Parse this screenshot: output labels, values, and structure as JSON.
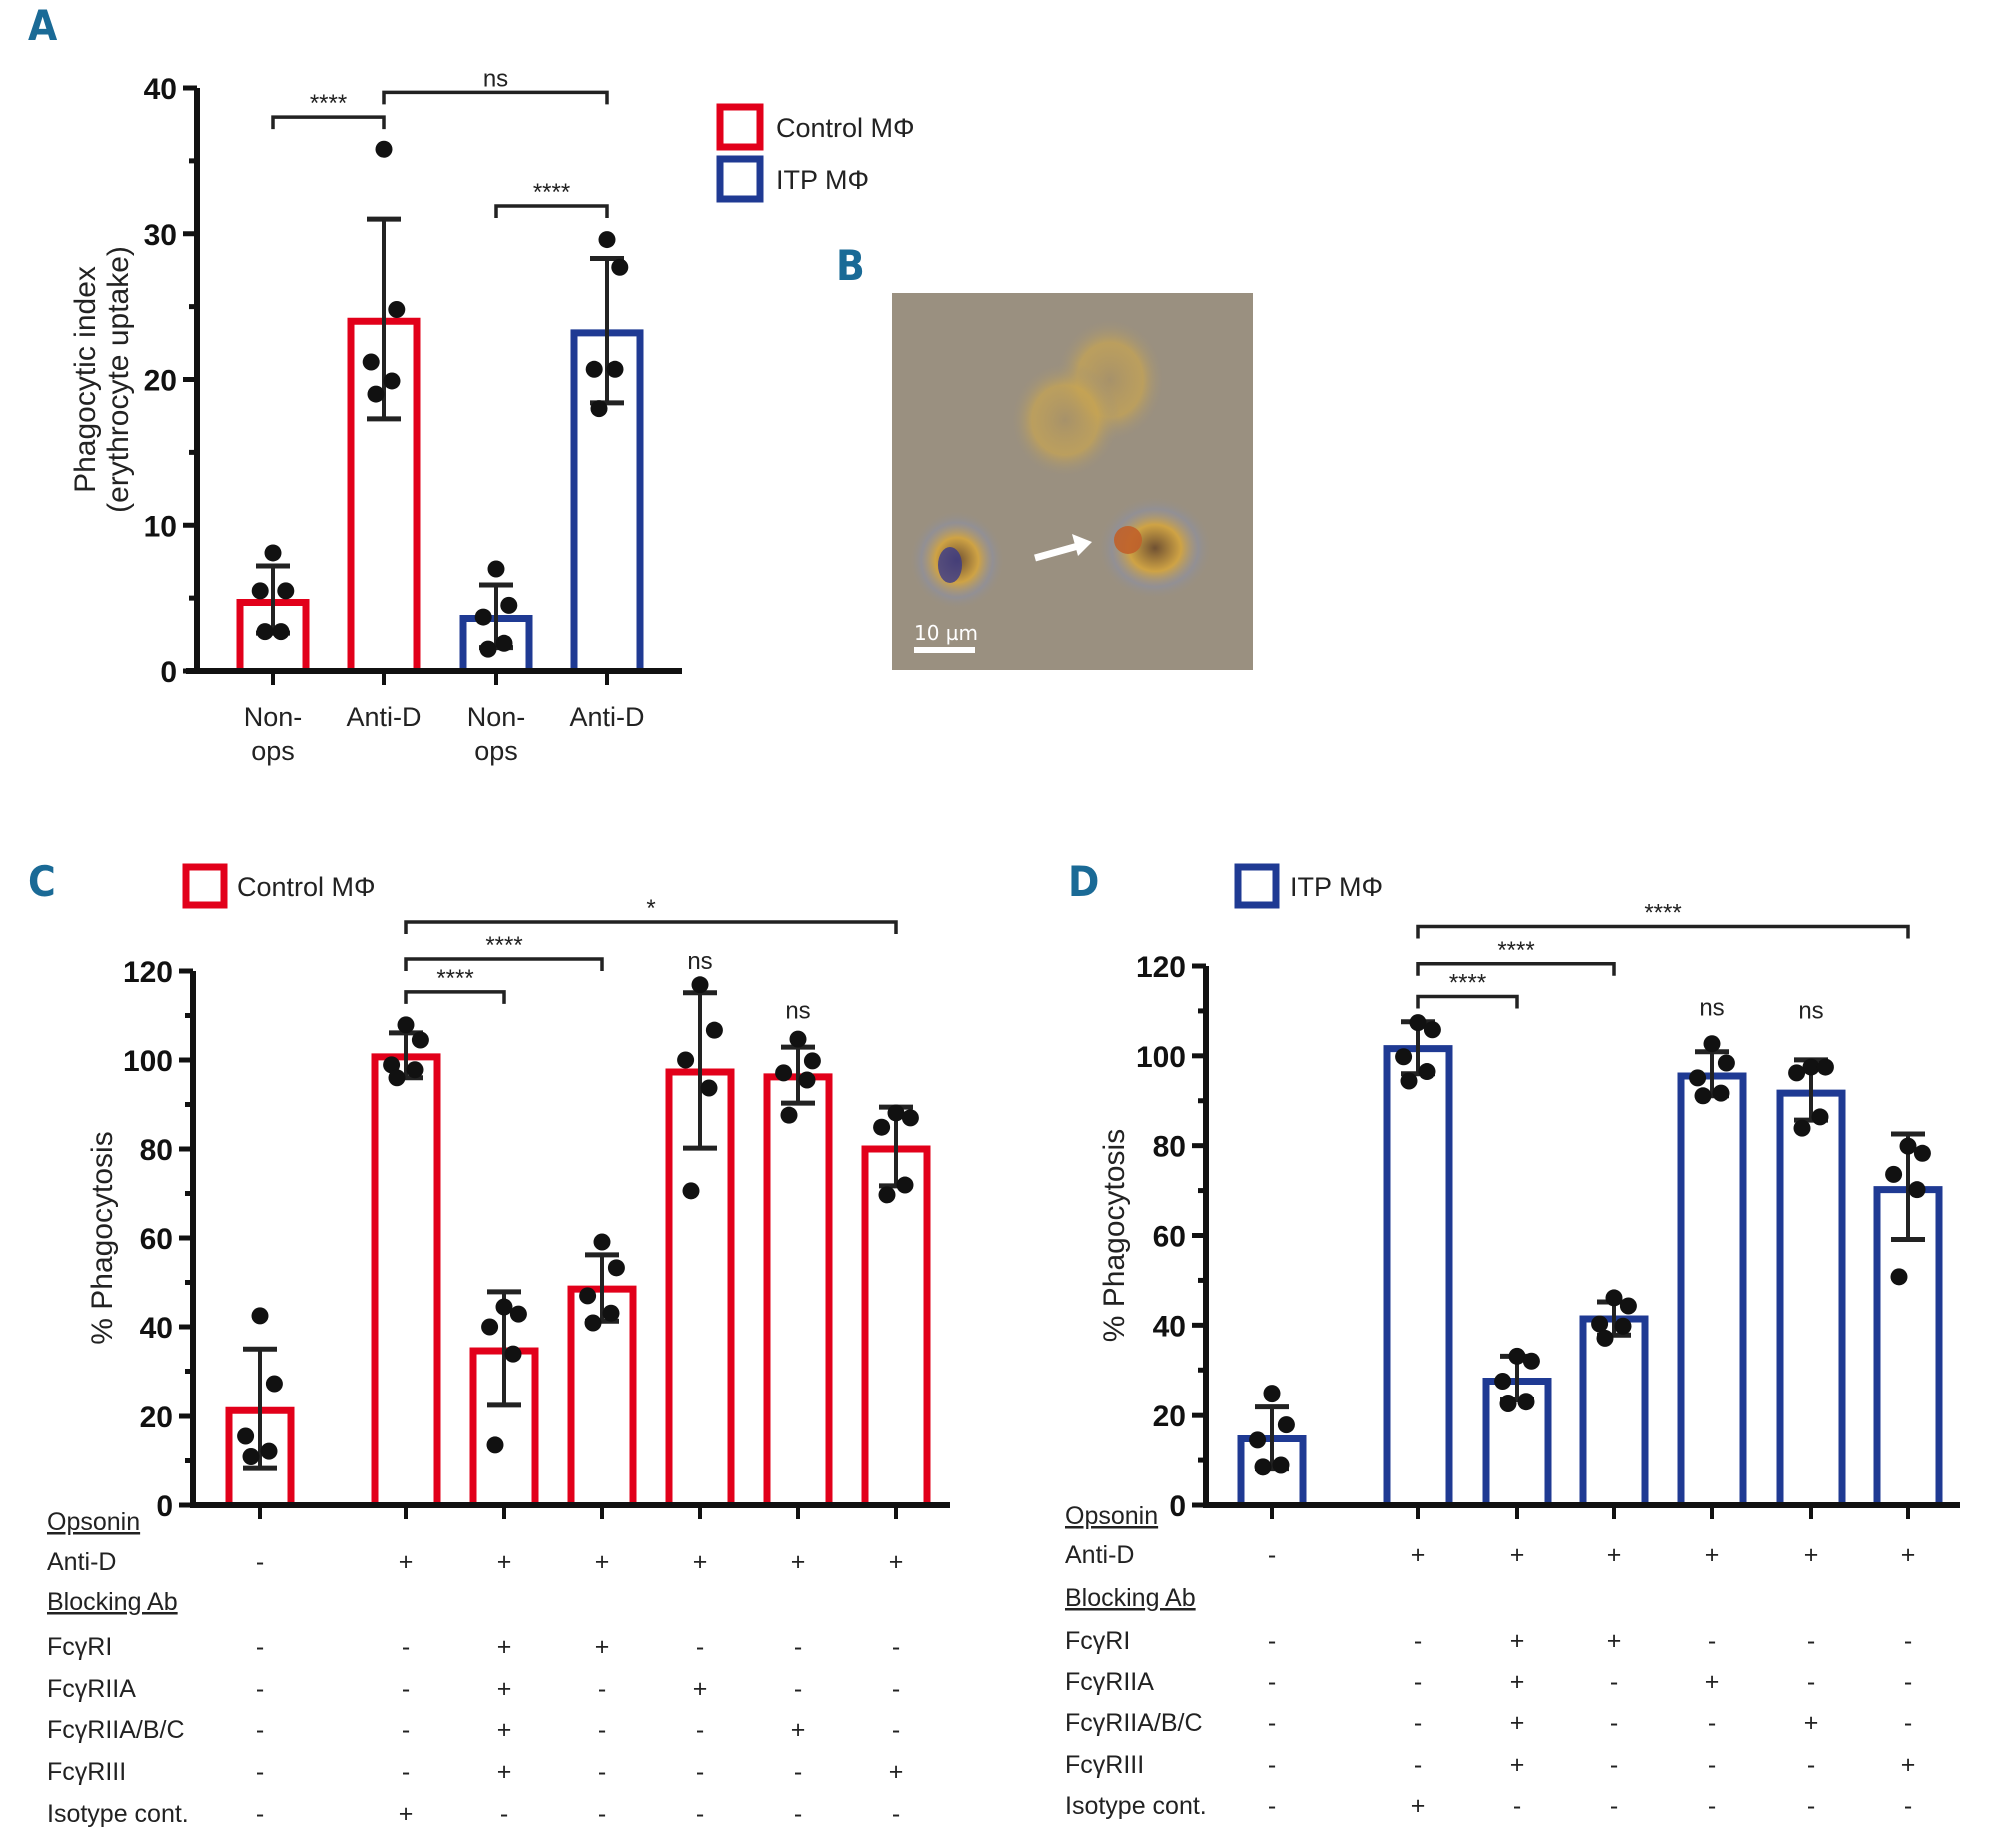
{
  "figure": {
    "panel_labels": [
      "A",
      "B",
      "C",
      "D"
    ],
    "colors": {
      "control": "#e2001a",
      "itp": "#1f3a93",
      "panel_label": "#1a6a96",
      "axis": "#111111",
      "micrograph_bg": "#9a9080"
    }
  },
  "micrograph": {
    "scale_bar_label": "10 µm",
    "arrow": "white-arrow-icon"
  },
  "chart_data": [
    {
      "id": "A",
      "type": "bar",
      "title": "",
      "xlabel": "",
      "ylabel": "Phagocytic index\n(erythrocyte uptake)",
      "ylabel_lines": [
        "Phagocytic index",
        "(erythrocyte uptake)"
      ],
      "ylim": [
        0,
        40
      ],
      "yticks": [
        0,
        10,
        20,
        30,
        40
      ],
      "categories": [
        {
          "lines": [
            "Non-",
            "ops"
          ],
          "group": "control"
        },
        {
          "lines": [
            "Anti-D"
          ],
          "group": "control"
        },
        {
          "lines": [
            "Non-",
            "ops"
          ],
          "group": "itp"
        },
        {
          "lines": [
            "Anti-D"
          ],
          "group": "itp"
        }
      ],
      "legend": {
        "placement": "top-right",
        "entries": [
          {
            "label": "Control MΦ",
            "group": "control"
          },
          {
            "label": "ITP MΦ",
            "group": "itp"
          }
        ]
      },
      "bars": [
        {
          "mean": 4.7,
          "sd_high": 7.2,
          "sd_low": 2.6,
          "points": [
            8.1,
            5.5,
            5.5,
            2.7,
            2.7
          ]
        },
        {
          "mean": 24.0,
          "sd_high": 31.0,
          "sd_low": 17.3,
          "points": [
            35.8,
            24.8,
            21.2,
            19.9,
            19.0
          ]
        },
        {
          "mean": 3.6,
          "sd_high": 5.9,
          "sd_low": 1.6,
          "points": [
            7.0,
            4.5,
            3.7,
            1.9,
            1.5
          ]
        },
        {
          "mean": 23.2,
          "sd_high": 28.3,
          "sd_low": 18.4,
          "points": [
            29.6,
            27.7,
            20.7,
            20.7,
            18.0
          ]
        }
      ],
      "significance": [
        {
          "from": 0,
          "to": 1,
          "label": "****",
          "level": 38.0
        },
        {
          "from": 1,
          "to": 3,
          "label": "ns",
          "level": 39.7
        },
        {
          "from": 2,
          "to": 3,
          "label": "****",
          "level": 31.9
        }
      ]
    },
    {
      "id": "C",
      "type": "bar",
      "title": "",
      "xlabel": "",
      "ylabel": "% Phagocytosis",
      "ylim": [
        0,
        120
      ],
      "yticks": [
        0,
        20,
        40,
        60,
        80,
        100,
        120
      ],
      "group": "control",
      "legend": {
        "placement": "top-left",
        "entries": [
          {
            "label": "Control MΦ",
            "group": "control"
          }
        ]
      },
      "bars": [
        {
          "mean": 21.3,
          "sd_high": 35.0,
          "sd_low": 8.3,
          "points": [
            42.5,
            27.2,
            15.5,
            12.1,
            10.9
          ]
        },
        {
          "mean": 100.7,
          "sd_high": 106.1,
          "sd_low": 96.0,
          "points": [
            107.9,
            104.5,
            98.9,
            97.8,
            96.0
          ]
        },
        {
          "mean": 34.6,
          "sd_high": 47.9,
          "sd_low": 22.5,
          "points": [
            44.5,
            42.9,
            40.0,
            33.9,
            13.5
          ]
        },
        {
          "mean": 48.5,
          "sd_high": 56.2,
          "sd_low": 41.3,
          "points": [
            59.1,
            53.3,
            47.0,
            43.1,
            40.9
          ]
        },
        {
          "mean": 97.3,
          "sd_high": 115.1,
          "sd_low": 80.2,
          "points": [
            116.9,
            106.7,
            100.0,
            93.7,
            70.6
          ]
        },
        {
          "mean": 96.2,
          "sd_high": 102.9,
          "sd_low": 90.3,
          "points": [
            104.7,
            99.8,
            97.1,
            95.5,
            87.6
          ]
        },
        {
          "mean": 80.0,
          "sd_high": 89.4,
          "sd_low": 71.7,
          "points": [
            88.1,
            87.0,
            84.9,
            71.9,
            69.7
          ]
        }
      ],
      "significance": [
        {
          "from": 1,
          "to": 6,
          "label": "*",
          "level": 131.0
        },
        {
          "from": 1,
          "to": 3,
          "label": "****",
          "level": 122.7
        },
        {
          "from": 1,
          "to": 2,
          "label": "****",
          "level": 115.3
        }
      ],
      "bar_annotations": [
        {
          "bar": 4,
          "label": "ns",
          "level": 120.5
        },
        {
          "bar": 5,
          "label": "ns",
          "level": 109.3
        }
      ],
      "table": {
        "rows": [
          {
            "label": "Opsonin",
            "header": true,
            "values": []
          },
          {
            "label": "Anti-D",
            "header": false,
            "values": [
              "-",
              "+",
              "+",
              "+",
              "+",
              "+",
              "+"
            ]
          },
          {
            "label": "Blocking Ab",
            "header": true,
            "values": []
          },
          {
            "label": "FcγRI",
            "header": false,
            "values": [
              "-",
              "-",
              "+",
              "+",
              "-",
              "-",
              "-"
            ]
          },
          {
            "label": "FcγRIIA",
            "header": false,
            "values": [
              "-",
              "-",
              "+",
              "-",
              "+",
              "-",
              "-"
            ]
          },
          {
            "label": "FcγRIIA/B/C",
            "header": false,
            "values": [
              "-",
              "-",
              "+",
              "-",
              "-",
              "+",
              "-"
            ]
          },
          {
            "label": "FcγRIII",
            "header": false,
            "values": [
              "-",
              "-",
              "+",
              "-",
              "-",
              "-",
              "+"
            ]
          },
          {
            "label": "Isotype cont.",
            "header": false,
            "values": [
              "-",
              "+",
              "-",
              "-",
              "-",
              "-",
              "-"
            ]
          }
        ]
      }
    },
    {
      "id": "D",
      "type": "bar",
      "title": "",
      "xlabel": "",
      "ylabel": "% Phagocytosis",
      "ylim": [
        0,
        120
      ],
      "yticks": [
        0,
        20,
        40,
        60,
        80,
        100,
        120
      ],
      "group": "itp",
      "legend": {
        "placement": "top-left",
        "entries": [
          {
            "label": "ITP MΦ",
            "group": "itp"
          }
        ]
      },
      "bars": [
        {
          "mean": 14.8,
          "sd_high": 21.9,
          "sd_low": 8.1,
          "points": [
            24.8,
            17.9,
            14.5,
            8.9,
            8.5
          ]
        },
        {
          "mean": 101.6,
          "sd_high": 107.6,
          "sd_low": 96.0,
          "points": [
            107.4,
            105.8,
            99.8,
            96.5,
            94.4
          ]
        },
        {
          "mean": 27.5,
          "sd_high": 33.1,
          "sd_low": 23.5,
          "points": [
            33.1,
            32.0,
            27.5,
            23.0,
            22.6
          ]
        },
        {
          "mean": 41.4,
          "sd_high": 45.2,
          "sd_low": 37.8,
          "points": [
            46.1,
            44.3,
            40.3,
            39.8,
            37.1
          ]
        },
        {
          "mean": 95.5,
          "sd_high": 100.9,
          "sd_low": 91.1,
          "points": [
            102.7,
            98.4,
            95.1,
            91.7,
            91.1
          ]
        },
        {
          "mean": 91.7,
          "sd_high": 99.1,
          "sd_low": 85.7,
          "points": [
            97.5,
            97.5,
            96.2,
            86.4,
            83.9
          ]
        },
        {
          "mean": 70.2,
          "sd_high": 82.6,
          "sd_low": 59.1,
          "points": [
            79.9,
            78.3,
            73.6,
            70.2,
            50.8
          ]
        }
      ],
      "significance": [
        {
          "from": 1,
          "to": 6,
          "label": "****",
          "level": 128.8
        },
        {
          "from": 1,
          "to": 3,
          "label": "****",
          "level": 120.5
        },
        {
          "from": 1,
          "to": 2,
          "label": "****",
          "level": 113.2
        }
      ],
      "bar_annotations": [
        {
          "bar": 4,
          "label": "ns",
          "level": 109.0
        },
        {
          "bar": 5,
          "label": "ns",
          "level": 108.3
        }
      ],
      "table": {
        "rows": [
          {
            "label": "Opsonin",
            "header": true,
            "values": []
          },
          {
            "label": "Anti-D",
            "header": false,
            "values": [
              "-",
              "+",
              "+",
              "+",
              "+",
              "+",
              "+"
            ]
          },
          {
            "label": "Blocking Ab",
            "header": true,
            "values": []
          },
          {
            "label": "FcγRI",
            "header": false,
            "values": [
              "-",
              "-",
              "+",
              "+",
              "-",
              "-",
              "-"
            ]
          },
          {
            "label": "FcγRIIA",
            "header": false,
            "values": [
              "-",
              "-",
              "+",
              "-",
              "+",
              "-",
              "-"
            ]
          },
          {
            "label": "FcγRIIA/B/C",
            "header": false,
            "values": [
              "-",
              "-",
              "+",
              "-",
              "-",
              "+",
              "-"
            ]
          },
          {
            "label": "FcγRIII",
            "header": false,
            "values": [
              "-",
              "-",
              "+",
              "-",
              "-",
              "-",
              "+"
            ]
          },
          {
            "label": "Isotype cont.",
            "header": false,
            "values": [
              "-",
              "+",
              "-",
              "-",
              "-",
              "-",
              "-"
            ]
          }
        ]
      }
    }
  ]
}
